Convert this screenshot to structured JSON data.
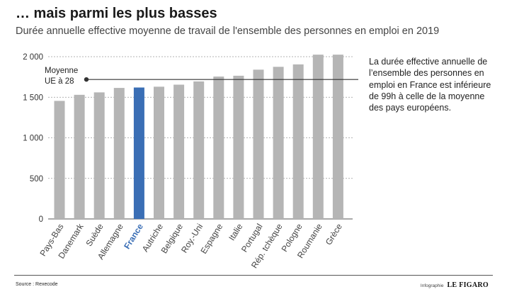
{
  "header": {
    "title": "… mais parmi les plus basses",
    "subtitle": "Durée annuelle effective moyenne de travail de l'ensemble des personnes en emploi en 2019"
  },
  "annotation": {
    "text": "La durée effective annuelle de l’ensemble des personnes en emploi en France est inférieure de 99h à celle de la moyenne des pays européens."
  },
  "footer": {
    "source": "Source : Rexecode",
    "credit_label": "Infographie",
    "brand": "LE FIGARO"
  },
  "colors": {
    "bar": "#b5b5b5",
    "highlight": "#3a6eb5",
    "reference_line": "#333333",
    "gridline": "#9a9a9a"
  },
  "chart_data": {
    "type": "bar",
    "categories": [
      "Pays-Bas",
      "Danemark",
      "Suède",
      "Allemagne",
      "France",
      "Autriche",
      "Belgique",
      "Roy.-Uni",
      "Espagne",
      "Italie",
      "Portugal",
      "Rép. tchèque",
      "Pologne",
      "Roumanie",
      "Grèce"
    ],
    "values": [
      1455,
      1530,
      1560,
      1615,
      1620,
      1630,
      1655,
      1695,
      1755,
      1765,
      1840,
      1875,
      1905,
      2025,
      2025
    ],
    "highlight": "France",
    "ylim": [
      0,
      2000
    ],
    "yticks": [
      0,
      500,
      1000,
      1500,
      2000
    ],
    "ytick_labels": [
      "0",
      "500",
      "1 000",
      "1 500",
      "2 000"
    ],
    "reference_line": {
      "value": 1719,
      "label_line1": "Moyenne",
      "label_line2": "UE à 28"
    },
    "grid": "horizontal dashed",
    "xlabel": "",
    "ylabel": ""
  }
}
